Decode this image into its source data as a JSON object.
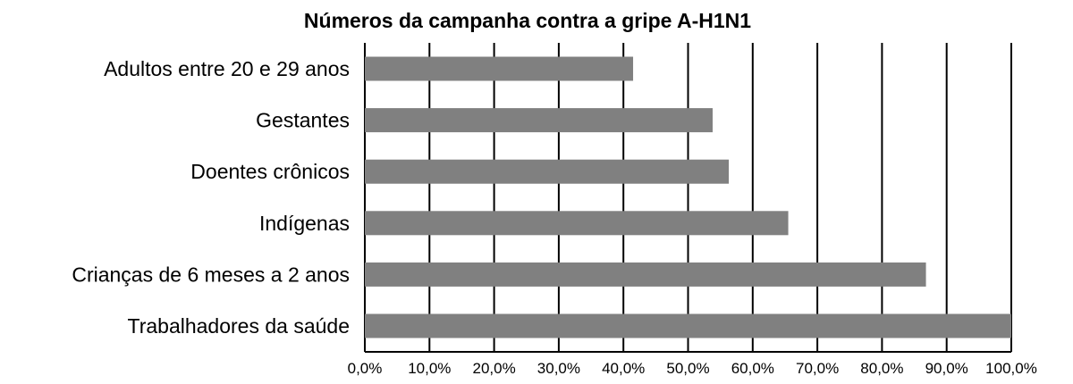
{
  "chart_data": {
    "type": "bar",
    "orientation": "horizontal",
    "title": "Números da campanha contra a gripe A-H1N1",
    "categories": [
      "Adultos entre 20 e 29 anos",
      "Gestantes",
      "Doentes crônicos",
      "Indígenas",
      "Crianças de 6 meses a 2 anos",
      "Trabalhadores da saúde"
    ],
    "values": [
      41.5,
      53.8,
      56.3,
      65.5,
      86.8,
      100.0
    ],
    "unit": "%",
    "xlim": [
      0,
      100
    ],
    "x_ticks": [
      0,
      10,
      20,
      30,
      40,
      50,
      60,
      70,
      80,
      90,
      100
    ],
    "x_tick_labels": [
      "0,0%",
      "10,0%",
      "20,0%",
      "30,0%",
      "40,0%",
      "50,0%",
      "60,0%",
      "70,0%",
      "80,0%",
      "90,0%",
      "100,0%"
    ],
    "xlabel": "",
    "ylabel": "",
    "grid": "vertical",
    "legend": "none",
    "bar_color": "#808080",
    "grid_color": "#000000"
  }
}
